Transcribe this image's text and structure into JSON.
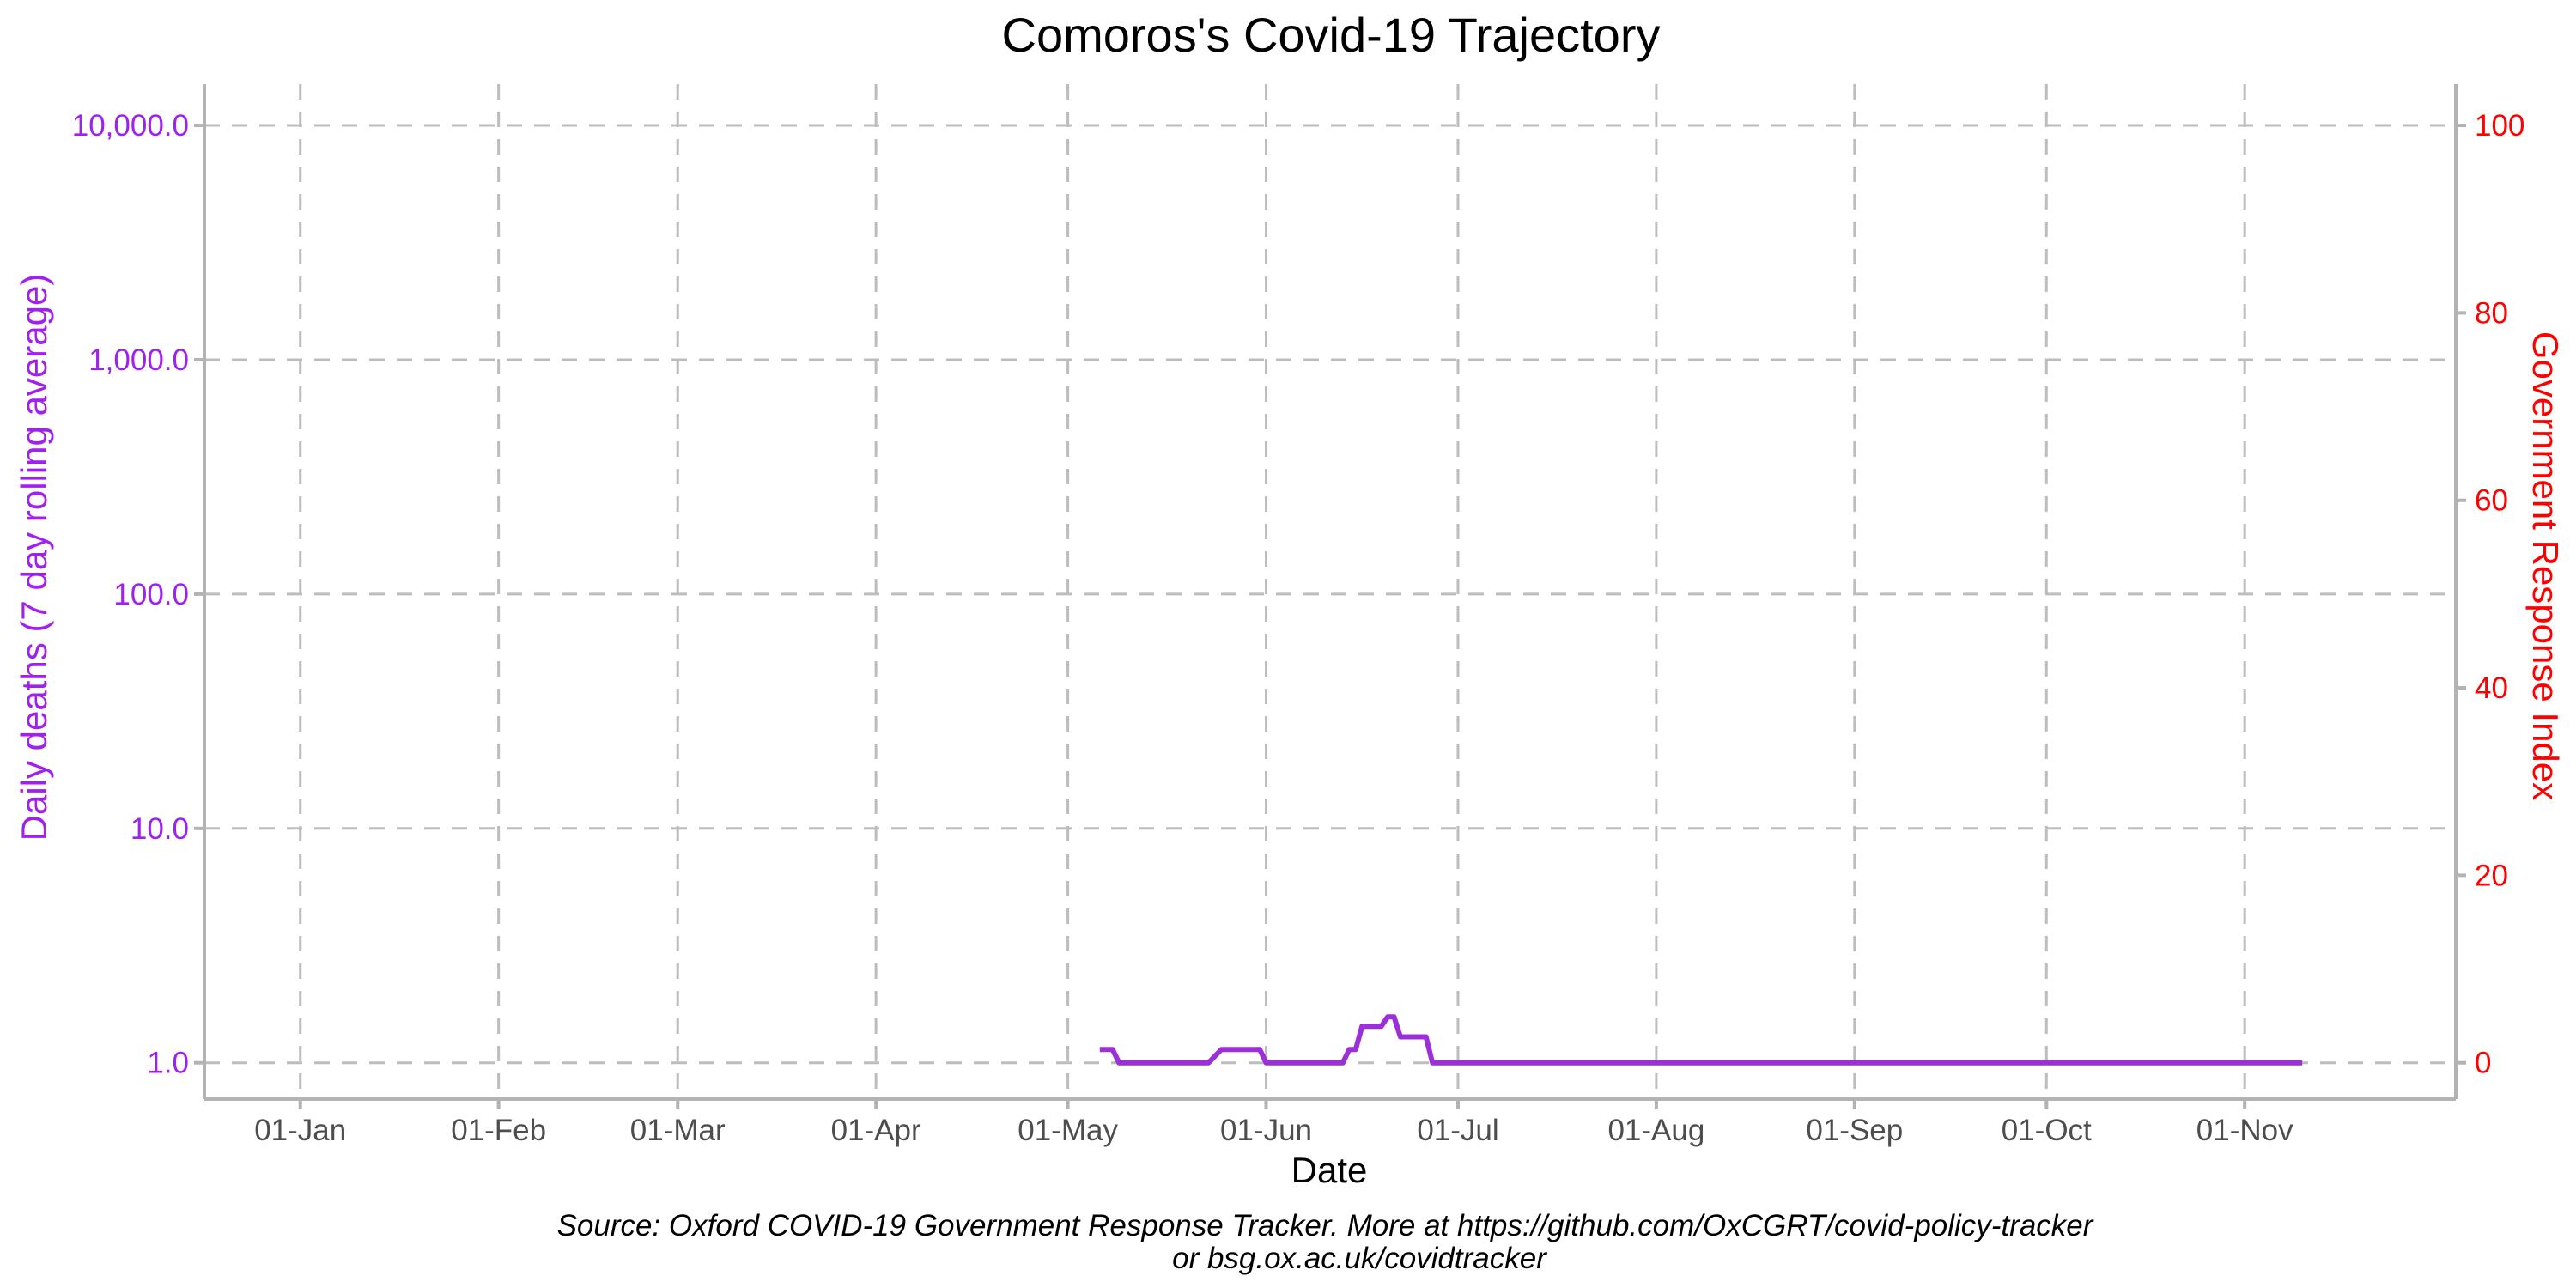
{
  "chart_data": {
    "type": "line",
    "title": "Comoros's Covid-19 Trajectory",
    "xlabel": "Date",
    "ylabel_left": "Daily deaths (7 day rolling average)",
    "ylabel_right": "Government Response Index",
    "caption_line1": "Source: Oxford COVID-19 Government Response Tracker. More at https://github.com/OxCGRT/covid-policy-tracker",
    "caption_line2": "or bsg.ox.ac.uk/covidtracker",
    "colors": {
      "left": "#a020f0",
      "right": "#ff0000",
      "series": "#9b30d9"
    },
    "y_left_scale": "log10",
    "y_left_range": [
      0.7,
      15000
    ],
    "y_left_ticks": [
      1,
      10,
      100,
      1000,
      10000
    ],
    "y_left_tick_labels": [
      "1.0",
      "10.0",
      "100.0",
      "1,000.0",
      "10,000.0"
    ],
    "y_right_range": [
      0,
      100
    ],
    "y_right_ticks": [
      0,
      20,
      40,
      60,
      80,
      100
    ],
    "y_right_tick_labels": [
      "0",
      "20",
      "40",
      "60",
      "80",
      "100"
    ],
    "x_range": [
      "2020-12-17",
      "2021-12-04"
    ],
    "x_ticks": [
      "2021-01-01",
      "2021-02-01",
      "2021-03-01",
      "2021-04-01",
      "2021-05-01",
      "2021-06-01",
      "2021-07-01",
      "2021-08-01",
      "2021-09-01",
      "2021-10-01",
      "2021-11-01"
    ],
    "x_tick_labels": [
      "01-Jan",
      "01-Feb",
      "01-Mar",
      "01-Apr",
      "01-May",
      "01-Jun",
      "01-Jul",
      "01-Aug",
      "01-Sep",
      "01-Oct",
      "01-Nov"
    ],
    "grid": true,
    "legend": "none",
    "series": [
      {
        "axis": "left",
        "points": [
          [
            "2021-05-06",
            1.14
          ],
          [
            "2021-05-08",
            1.14
          ],
          [
            "2021-05-09",
            1.0
          ],
          [
            "2021-05-23",
            1.0
          ],
          [
            "2021-05-25",
            1.14
          ],
          [
            "2021-05-31",
            1.14
          ],
          [
            "2021-06-01",
            1.0
          ],
          [
            "2021-06-13",
            1.0
          ],
          [
            "2021-06-14",
            1.14
          ],
          [
            "2021-06-15",
            1.14
          ],
          [
            "2021-06-16",
            1.43
          ],
          [
            "2021-06-19",
            1.43
          ],
          [
            "2021-06-20",
            1.57
          ],
          [
            "2021-06-21",
            1.57
          ],
          [
            "2021-06-22",
            1.29
          ],
          [
            "2021-06-26",
            1.29
          ],
          [
            "2021-06-27",
            1.0
          ],
          [
            "2021-11-10",
            1.0
          ]
        ]
      }
    ]
  }
}
